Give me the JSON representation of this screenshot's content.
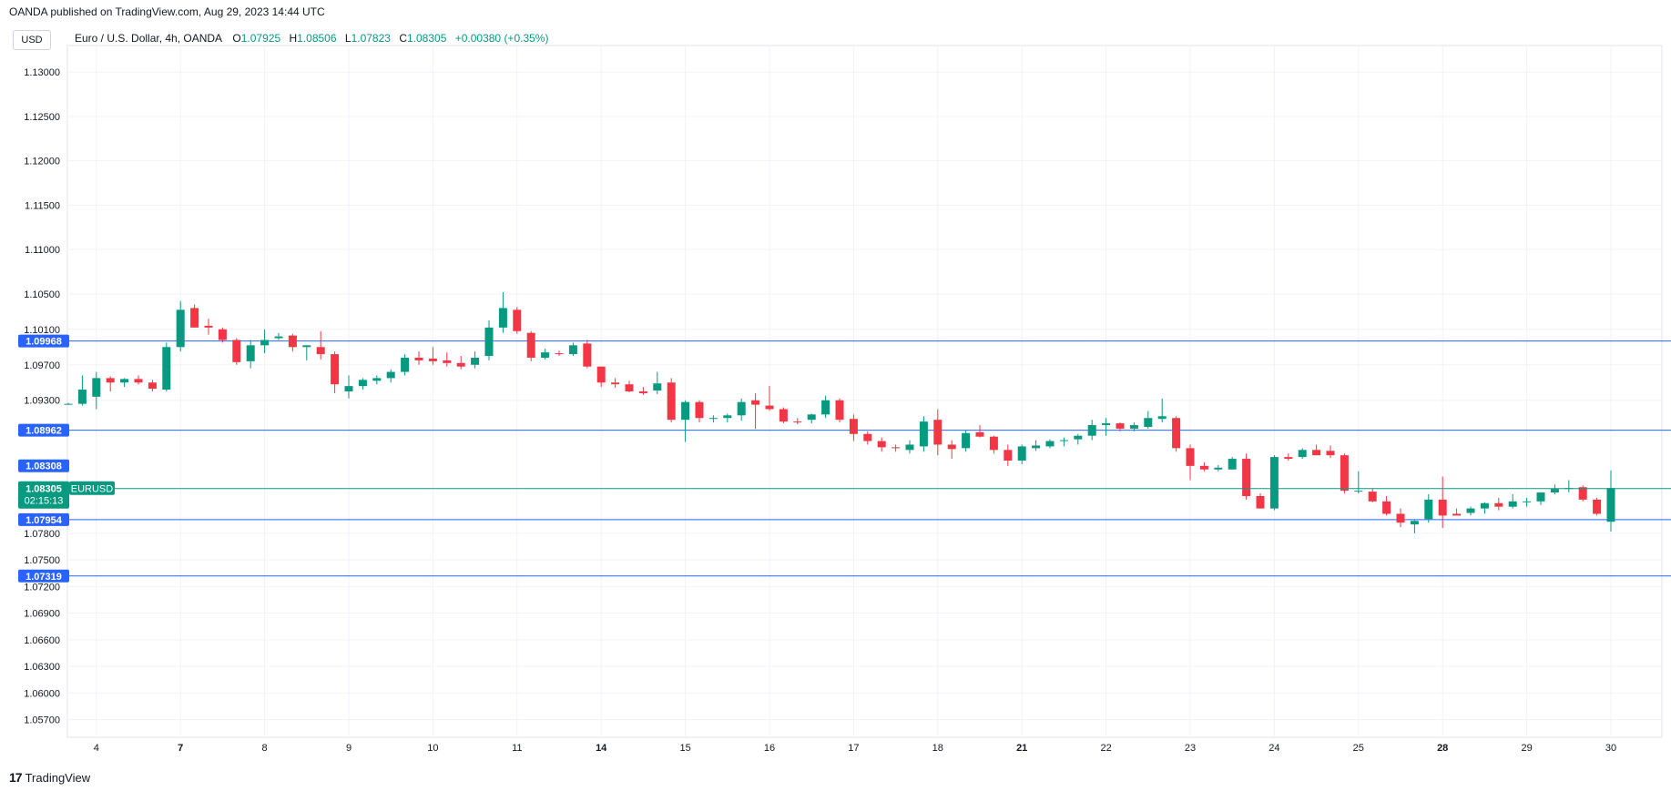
{
  "header": {
    "published": "OANDA published on TradingView.com, Aug 29, 2023 14:44 UTC",
    "currency": "USD",
    "symbol": "Euro / U.S. Dollar, 4h, OANDA",
    "o_label": "O",
    "o_value": "1.07925",
    "h_label": "H",
    "h_value": "1.08506",
    "l_label": "L",
    "l_value": "1.07823",
    "c_label": "C",
    "c_value": "1.08305",
    "change": "+0.00380 (+0.35%)"
  },
  "footer": {
    "brand": "TradingView",
    "logo": "tradingview-logo-icon"
  },
  "colors": {
    "up": "#089981",
    "down": "#f23645",
    "line": "#2962ff",
    "grid": "#f0f3fa"
  },
  "chart_data": {
    "type": "candlestick",
    "ylim": [
      1.055,
      1.133
    ],
    "y_ticks": [
      "1.13000",
      "1.12500",
      "1.12000",
      "1.11500",
      "1.11000",
      "1.10500",
      "1.10100",
      "1.09700",
      "1.09300",
      "1.07800",
      "1.07500",
      "1.07200",
      "1.06900",
      "1.06600",
      "1.06300",
      "1.06000",
      "1.05700"
    ],
    "x_ticks": [
      {
        "label": "4",
        "bold": false,
        "i": 2
      },
      {
        "label": "7",
        "bold": true,
        "i": 8
      },
      {
        "label": "8",
        "bold": false,
        "i": 14
      },
      {
        "label": "9",
        "bold": false,
        "i": 20
      },
      {
        "label": "10",
        "bold": false,
        "i": 26
      },
      {
        "label": "11",
        "bold": false,
        "i": 32
      },
      {
        "label": "14",
        "bold": true,
        "i": 38
      },
      {
        "label": "15",
        "bold": false,
        "i": 44
      },
      {
        "label": "16",
        "bold": false,
        "i": 50
      },
      {
        "label": "17",
        "bold": false,
        "i": 56
      },
      {
        "label": "18",
        "bold": false,
        "i": 62
      },
      {
        "label": "21",
        "bold": true,
        "i": 68
      },
      {
        "label": "22",
        "bold": false,
        "i": 74
      },
      {
        "label": "23",
        "bold": false,
        "i": 80
      },
      {
        "label": "24",
        "bold": false,
        "i": 86
      },
      {
        "label": "25",
        "bold": false,
        "i": 92
      },
      {
        "label": "28",
        "bold": true,
        "i": 98
      },
      {
        "label": "29",
        "bold": false,
        "i": 104
      },
      {
        "label": "30",
        "bold": false,
        "i": 110
      }
    ],
    "h_lines": [
      {
        "value": 1.09968,
        "label": "1.09968"
      },
      {
        "value": 1.08962,
        "label": "1.08962"
      },
      {
        "value": 1.07954,
        "label": "1.07954"
      },
      {
        "value": 1.07319,
        "label": "1.07319"
      }
    ],
    "price_marker": {
      "high_label": "1.08308",
      "value": 1.08305,
      "label": "1.08305",
      "timer": "02:15:13",
      "symbol": "EURUSD"
    },
    "candles": [
      [
        1.0926,
        1.0927,
        1.0925,
        1.0926
      ],
      [
        1.0926,
        1.0958,
        1.0924,
        1.0942
      ],
      [
        1.0934,
        1.0962,
        1.092,
        1.0955
      ],
      [
        1.0955,
        1.0957,
        1.094,
        1.095
      ],
      [
        1.095,
        1.0955,
        1.0945,
        1.0954
      ],
      [
        1.0954,
        1.0958,
        1.0948,
        1.095
      ],
      [
        1.095,
        1.0953,
        1.094,
        1.0943
      ],
      [
        1.0942,
        1.0995,
        1.094,
        1.099
      ],
      [
        1.099,
        1.1042,
        1.0985,
        1.1032
      ],
      [
        1.1034,
        1.1038,
        1.1012,
        1.1012
      ],
      [
        1.1014,
        1.1022,
        1.1004,
        1.1012
      ],
      [
        1.101,
        1.1012,
        1.0995,
        1.0998
      ],
      [
        1.0998,
        1.1,
        1.097,
        1.0973
      ],
      [
        1.0974,
        1.0998,
        1.0966,
        1.0992
      ],
      [
        1.0992,
        1.101,
        1.0983,
        1.0998
      ],
      [
        1.1,
        1.1006,
        1.0998,
        1.1002
      ],
      [
        1.1003,
        1.1005,
        1.0985,
        1.099
      ],
      [
        1.099,
        1.0992,
        1.0975,
        1.0992
      ],
      [
        1.099,
        1.1008,
        1.0976,
        1.0982
      ],
      [
        1.0982,
        1.0985,
        1.0938,
        1.0948
      ],
      [
        1.094,
        1.0958,
        1.0932,
        1.0946
      ],
      [
        1.0946,
        1.0955,
        1.0942,
        1.0953
      ],
      [
        1.0952,
        1.0958,
        1.0948,
        1.0955
      ],
      [
        1.0955,
        1.0965,
        1.095,
        1.0962
      ],
      [
        1.0962,
        1.0982,
        1.0958,
        1.0978
      ],
      [
        1.0978,
        1.0985,
        1.097,
        1.0975
      ],
      [
        1.0977,
        1.099,
        1.097,
        1.0974
      ],
      [
        1.0975,
        1.0984,
        1.0968,
        1.0972
      ],
      [
        1.0972,
        1.098,
        1.0965,
        1.0968
      ],
      [
        1.097,
        1.0985,
        1.0966,
        1.0978
      ],
      [
        1.098,
        1.102,
        1.0975,
        1.1012
      ],
      [
        1.1012,
        1.1052,
        1.1006,
        1.1034
      ],
      [
        1.1032,
        1.1035,
        1.1005,
        1.1008
      ],
      [
        1.1006,
        1.1008,
        1.0974,
        1.0978
      ],
      [
        1.0978,
        1.0988,
        1.0976,
        1.0984
      ],
      [
        1.0983,
        1.0986,
        1.098,
        1.0982
      ],
      [
        1.0982,
        1.0995,
        1.098,
        1.0992
      ],
      [
        1.0994,
        1.0998,
        1.0966,
        1.0968
      ],
      [
        1.0968,
        1.0968,
        1.0945,
        1.095
      ],
      [
        1.095,
        1.0955,
        1.0944,
        1.0948
      ],
      [
        1.0948,
        1.0952,
        1.0939,
        1.094
      ],
      [
        1.094,
        1.0945,
        1.0936,
        1.0938
      ],
      [
        1.0941,
        1.0962,
        1.0937,
        1.0949
      ],
      [
        1.095,
        1.0955,
        1.0905,
        1.0908
      ],
      [
        1.0908,
        1.093,
        1.0883,
        1.0928
      ],
      [
        1.0928,
        1.093,
        1.0905,
        1.091
      ],
      [
        1.091,
        1.0913,
        1.0905,
        1.091
      ],
      [
        1.091,
        1.0915,
        1.0905,
        1.0913
      ],
      [
        1.0913,
        1.0932,
        1.0907,
        1.0928
      ],
      [
        1.093,
        1.0938,
        1.0898,
        1.0925
      ],
      [
        1.0924,
        1.0946,
        1.0918,
        1.092
      ],
      [
        1.092,
        1.0922,
        1.0904,
        1.0906
      ],
      [
        1.0906,
        1.091,
        1.0903,
        1.0905
      ],
      [
        1.0908,
        1.0915,
        1.0904,
        1.0914
      ],
      [
        1.0914,
        1.0935,
        1.091,
        1.093
      ],
      [
        1.093,
        1.0932,
        1.0905,
        1.0908
      ],
      [
        1.0909,
        1.0914,
        1.0884,
        1.0892
      ],
      [
        1.0892,
        1.0895,
        1.088,
        1.0884
      ],
      [
        1.0884,
        1.0888,
        1.0872,
        1.0877
      ],
      [
        1.0877,
        1.088,
        1.0872,
        1.0876
      ],
      [
        1.0874,
        1.0885,
        1.087,
        1.088
      ],
      [
        1.0878,
        1.0912,
        1.0872,
        1.0906
      ],
      [
        1.0908,
        1.092,
        1.0868,
        1.088
      ],
      [
        1.088,
        1.0885,
        1.0864,
        1.0875
      ],
      [
        1.0876,
        1.0896,
        1.0872,
        1.0893
      ],
      [
        1.0894,
        1.0902,
        1.0888,
        1.0889
      ],
      [
        1.0889,
        1.089,
        1.087,
        1.0874
      ],
      [
        1.0874,
        1.088,
        1.0856,
        1.0862
      ],
      [
        1.0862,
        1.088,
        1.0858,
        1.0878
      ],
      [
        1.0876,
        1.0885,
        1.0873,
        1.0879
      ],
      [
        1.0878,
        1.0886,
        1.0876,
        1.0884
      ],
      [
        1.0884,
        1.0888,
        1.0878,
        1.0885
      ],
      [
        1.0886,
        1.0892,
        1.088,
        1.089
      ],
      [
        1.089,
        1.0908,
        1.0885,
        1.0902
      ],
      [
        1.0902,
        1.091,
        1.089,
        1.0904
      ],
      [
        1.0904,
        1.0905,
        1.0895,
        1.0898
      ],
      [
        1.0898,
        1.0905,
        1.0895,
        1.0902
      ],
      [
        1.09,
        1.0918,
        1.0898,
        1.091
      ],
      [
        1.0909,
        1.0932,
        1.0905,
        1.0912
      ],
      [
        1.091,
        1.0912,
        1.0872,
        1.0876
      ],
      [
        1.0876,
        1.088,
        1.084,
        1.0856
      ],
      [
        1.0856,
        1.086,
        1.085,
        1.0852
      ],
      [
        1.0852,
        1.0857,
        1.085,
        1.0854
      ],
      [
        1.0852,
        1.0866,
        1.0852,
        1.0864
      ],
      [
        1.0864,
        1.087,
        1.0818,
        1.0822
      ],
      [
        1.0822,
        1.0825,
        1.0808,
        1.0808
      ],
      [
        1.0808,
        1.0868,
        1.0806,
        1.0866
      ],
      [
        1.0866,
        1.087,
        1.0862,
        1.0864
      ],
      [
        1.0866,
        1.0876,
        1.0864,
        1.0874
      ],
      [
        1.0874,
        1.088,
        1.0868,
        1.0868
      ],
      [
        1.0873,
        1.0879,
        1.0865,
        1.0868
      ],
      [
        1.0868,
        1.087,
        1.0825,
        1.0828
      ],
      [
        1.0828,
        1.085,
        1.0825,
        1.0828
      ],
      [
        1.0827,
        1.083,
        1.0815,
        1.0816
      ],
      [
        1.0816,
        1.0822,
        1.08,
        1.0802
      ],
      [
        1.0802,
        1.0808,
        1.0787,
        1.0792
      ],
      [
        1.079,
        1.0795,
        1.078,
        1.0794
      ],
      [
        1.0796,
        1.0824,
        1.0792,
        1.0818
      ],
      [
        1.0818,
        1.0844,
        1.0786,
        1.08
      ],
      [
        1.0802,
        1.0808,
        1.08,
        1.08
      ],
      [
        1.0803,
        1.081,
        1.08,
        1.0808
      ],
      [
        1.0808,
        1.0815,
        1.0802,
        1.0814
      ],
      [
        1.0814,
        1.082,
        1.0806,
        1.081
      ],
      [
        1.081,
        1.0824,
        1.0808,
        1.0816
      ],
      [
        1.0816,
        1.082,
        1.081,
        1.0816
      ],
      [
        1.0816,
        1.0825,
        1.0812,
        1.0826
      ],
      [
        1.0826,
        1.0835,
        1.0824,
        1.083
      ],
      [
        1.083,
        1.084,
        1.0826,
        1.0831
      ],
      [
        1.0832,
        1.0834,
        1.0816,
        1.0818
      ],
      [
        1.0818,
        1.082,
        1.08,
        1.0802
      ],
      [
        1.0793,
        1.0851,
        1.0782,
        1.0831
      ]
    ]
  }
}
